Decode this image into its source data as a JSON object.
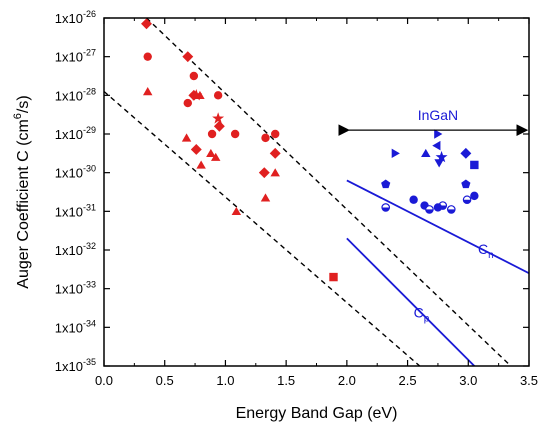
{
  "chart_data": {
    "type": "scatter",
    "xlabel": "Energy Band Gap (eV)",
    "ylabel_main": "Auger Coefficient C (cm",
    "ylabel_sup": "6",
    "ylabel_end": "/s)",
    "xlim": [
      0.0,
      3.5
    ],
    "ylim_log10": [
      -35,
      -26
    ],
    "log_y": true,
    "x_ticks": [
      0.0,
      0.5,
      1.0,
      1.5,
      2.0,
      2.5,
      3.0,
      3.5
    ],
    "x_tick_labels": [
      "0.0",
      "0.5",
      "1.0",
      "1.5",
      "2.0",
      "2.5",
      "3.0",
      "3.5"
    ],
    "y_tick_exponents": [
      -35,
      -34,
      -33,
      -32,
      -31,
      -30,
      -29,
      -28,
      -27,
      -26
    ],
    "y_tick_base": "1x10",
    "y_tick_sups": [
      "-35",
      "-34",
      "-33",
      "-32",
      "-31",
      "-30",
      "-29",
      "-28",
      "-27",
      "-26"
    ],
    "grid": false,
    "colors": {
      "red": "#e02020",
      "blue": "#1a1ad6",
      "black": "#000000"
    },
    "annotations": {
      "ingan_label": "InGaN",
      "cn_label": "C",
      "cn_sub": "n",
      "cp_label": "C",
      "cp_sub": "p",
      "ingan_arrow_x": [
        2.0,
        3.5
      ],
      "ingan_arrow_y_log10": -28.9
    },
    "dashed_lines": [
      {
        "x": [
          0.35,
          3.35
        ],
        "y_log10": [
          -26.0,
          -35.0
        ]
      },
      {
        "x": [
          0.0,
          2.6
        ],
        "y_log10": [
          -27.9,
          -35.0
        ]
      }
    ],
    "blue_lines": [
      {
        "name": "Cn",
        "x": [
          2.0,
          3.5
        ],
        "y_log10": [
          -30.2,
          -32.6
        ]
      },
      {
        "name": "Cp",
        "x": [
          2.0,
          3.05
        ],
        "y_log10": [
          -31.7,
          -35.0
        ]
      }
    ],
    "series": [
      {
        "color": "red",
        "points": [
          {
            "x": 0.35,
            "y_log10": -26.15,
            "marker": "diamond"
          },
          {
            "x": 0.36,
            "y_log10": -27.0,
            "marker": "circle"
          },
          {
            "x": 0.36,
            "y_log10": -27.9,
            "marker": "triangle"
          },
          {
            "x": 0.69,
            "y_log10": -27.0,
            "marker": "diamond"
          },
          {
            "x": 0.74,
            "y_log10": -27.5,
            "marker": "circle"
          },
          {
            "x": 0.69,
            "y_log10": -28.2,
            "marker": "circle"
          },
          {
            "x": 0.74,
            "y_log10": -28.0,
            "marker": "diamond"
          },
          {
            "x": 0.76,
            "y_log10": -28.0,
            "marker": "star"
          },
          {
            "x": 0.79,
            "y_log10": -28.0,
            "marker": "triangle"
          },
          {
            "x": 0.68,
            "y_log10": -29.1,
            "marker": "triangle"
          },
          {
            "x": 0.76,
            "y_log10": -29.4,
            "marker": "diamond"
          },
          {
            "x": 0.8,
            "y_log10": -29.8,
            "marker": "triangle"
          },
          {
            "x": 0.88,
            "y_log10": -29.5,
            "marker": "triangle"
          },
          {
            "x": 0.89,
            "y_log10": -29.0,
            "marker": "circle"
          },
          {
            "x": 0.94,
            "y_log10": -28.0,
            "marker": "circle"
          },
          {
            "x": 0.94,
            "y_log10": -28.6,
            "marker": "star"
          },
          {
            "x": 0.95,
            "y_log10": -28.8,
            "marker": "diamond"
          },
          {
            "x": 0.92,
            "y_log10": -29.6,
            "marker": "triangle"
          },
          {
            "x": 1.08,
            "y_log10": -29.0,
            "marker": "circle"
          },
          {
            "x": 1.09,
            "y_log10": -31.0,
            "marker": "triangle"
          },
          {
            "x": 1.33,
            "y_log10": -29.1,
            "marker": "circle"
          },
          {
            "x": 1.32,
            "y_log10": -30.0,
            "marker": "diamond"
          },
          {
            "x": 1.33,
            "y_log10": -30.65,
            "marker": "triangle"
          },
          {
            "x": 1.41,
            "y_log10": -29.0,
            "marker": "circle"
          },
          {
            "x": 1.41,
            "y_log10": -29.5,
            "marker": "diamond"
          },
          {
            "x": 1.41,
            "y_log10": -30.0,
            "marker": "triangle"
          },
          {
            "x": 1.89,
            "y_log10": -32.7,
            "marker": "square"
          }
        ]
      },
      {
        "color": "blue",
        "points": [
          {
            "x": 2.32,
            "y_log10": -30.3,
            "marker": "pentagon"
          },
          {
            "x": 2.32,
            "y_log10": -30.9,
            "marker": "half-circle"
          },
          {
            "x": 2.4,
            "y_log10": -29.5,
            "marker": "triangle-right"
          },
          {
            "x": 2.55,
            "y_log10": -30.7,
            "marker": "circle"
          },
          {
            "x": 2.64,
            "y_log10": -30.85,
            "marker": "circle"
          },
          {
            "x": 2.65,
            "y_log10": -29.5,
            "marker": "triangle"
          },
          {
            "x": 2.68,
            "y_log10": -30.95,
            "marker": "half-circle"
          },
          {
            "x": 2.75,
            "y_log10": -29.0,
            "marker": "triangle-right"
          },
          {
            "x": 2.74,
            "y_log10": -29.3,
            "marker": "triangle-left"
          },
          {
            "x": 2.76,
            "y_log10": -29.75,
            "marker": "triangle-down"
          },
          {
            "x": 2.78,
            "y_log10": -29.6,
            "marker": "star"
          },
          {
            "x": 2.79,
            "y_log10": -30.85,
            "marker": "half-circle"
          },
          {
            "x": 2.75,
            "y_log10": -30.9,
            "marker": "circle"
          },
          {
            "x": 2.86,
            "y_log10": -30.95,
            "marker": "half-circle"
          },
          {
            "x": 2.98,
            "y_log10": -29.5,
            "marker": "diamond"
          },
          {
            "x": 3.05,
            "y_log10": -29.8,
            "marker": "square"
          },
          {
            "x": 2.98,
            "y_log10": -30.3,
            "marker": "pentagon"
          },
          {
            "x": 2.99,
            "y_log10": -30.7,
            "marker": "half-circle"
          },
          {
            "x": 3.05,
            "y_log10": -30.6,
            "marker": "circle"
          }
        ]
      }
    ]
  }
}
